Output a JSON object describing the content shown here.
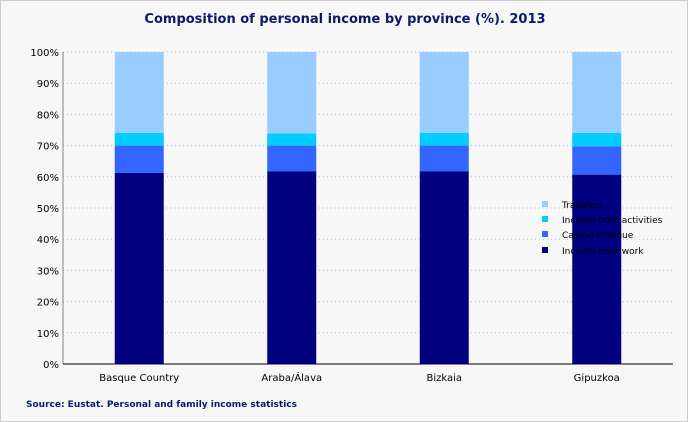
{
  "chart_data": {
    "type": "stacked-bar",
    "title": "Composition of personal income by province (%). 2013",
    "source": "Source: Eustat. Personal and family income statistics",
    "categories": [
      "Basque Country",
      "Araba/Álava",
      "Bizkaia",
      "Gipuzkoa"
    ],
    "ylim": [
      0,
      100
    ],
    "yticks": [
      "0%",
      "10%",
      "20%",
      "30%",
      "40%",
      "50%",
      "60%",
      "70%",
      "80%",
      "90%",
      "100%"
    ],
    "grid": true,
    "legend_position": "right",
    "series": [
      {
        "name": "Income from work",
        "color": "#000080",
        "values": [
          61.3,
          61.8,
          61.8,
          60.7
        ]
      },
      {
        "name": "Capital revenue",
        "color": "#3366ff",
        "values": [
          8.7,
          8.2,
          8.2,
          9.1
        ]
      },
      {
        "name": "Income from activities",
        "color": "#00ccff",
        "values": [
          4.1,
          3.9,
          4.1,
          4.3
        ]
      },
      {
        "name": "Transfers",
        "color": "#99ccff",
        "values": [
          25.9,
          26.1,
          25.9,
          25.9
        ]
      }
    ]
  }
}
